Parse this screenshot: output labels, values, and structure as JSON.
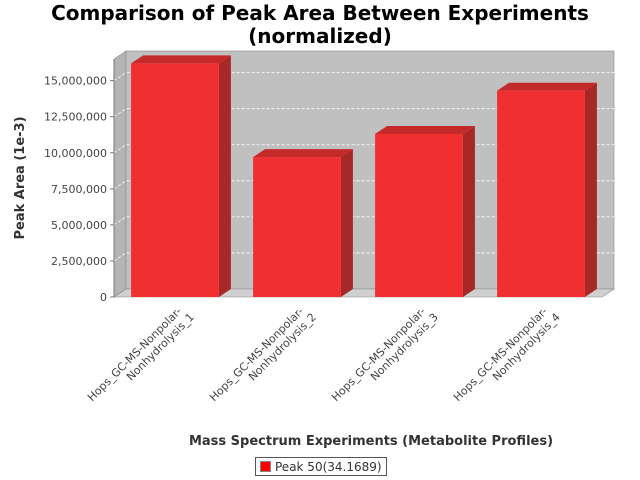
{
  "chart_data": {
    "type": "bar",
    "title_lines": [
      "Comparison of Peak Area Between Experiments",
      "(normalized)"
    ],
    "xlabel": "Mass Spectrum Experiments (Metabolite Profiles)",
    "ylabel": "Peak Area (1e-3)",
    "ylim": [
      0,
      16500000
    ],
    "yticks": [
      0,
      2500000,
      5000000,
      7500000,
      10000000,
      12500000,
      15000000
    ],
    "ytick_labels": [
      "0",
      "2,500,000",
      "5,000,000",
      "7,500,000",
      "10,000,000",
      "12,500,000",
      "15,000,000"
    ],
    "categories": [
      [
        "Hops_GC-MS-Nonpolar-",
        "Nonhydrolysis_1"
      ],
      [
        "Hops_GC-MS-Nonpolar-",
        "Nonhydrolysis_2"
      ],
      [
        "Hops_GC-MS-Nonpolar-",
        "Nonhydrolysis_3"
      ],
      [
        "Hops_GC-MS-Nonpolar-",
        "Nonhydrolysis_4"
      ]
    ],
    "series": [
      {
        "name": "Peak 50(34.1689)",
        "values": [
          16200000,
          9700000,
          11300000,
          14300000
        ]
      }
    ],
    "grid": true,
    "legend_position": "bottom",
    "colors": {
      "bar_front": "#f03030",
      "bar_side": "#a82828",
      "bar_top": "#c52a2a",
      "plot_back": "#c0c0c0",
      "plot_floor": "#d0d0d0",
      "legend_swatch": "#ff0000"
    }
  }
}
